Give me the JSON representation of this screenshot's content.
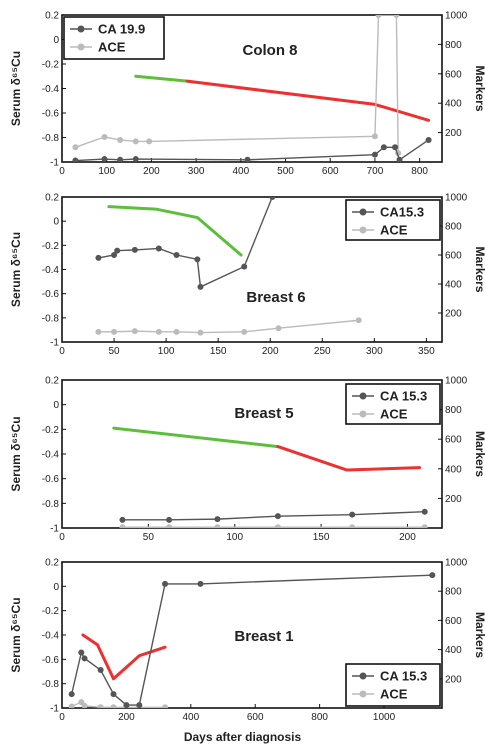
{
  "common": {
    "xlabel": "Days after diagnosis"
  },
  "chart_data": [
    {
      "type": "line",
      "title": "Colon 8",
      "ylabel": "Serum δ⁶⁵Cu",
      "y2label": "Markers",
      "xlim": [
        0,
        850
      ],
      "ylim": [
        -1,
        0.2
      ],
      "y2lim": [
        0,
        1000
      ],
      "xticks": [
        0,
        100,
        200,
        300,
        400,
        500,
        600,
        700,
        800
      ],
      "yticks": [
        -1,
        -0.8,
        -0.6,
        -0.4,
        -0.2,
        0,
        0.2
      ],
      "y2ticks": [
        200,
        400,
        600,
        800,
        1000
      ],
      "legend": {
        "placement": "top-left",
        "entries": [
          "CA 19.9",
          "ACE"
        ]
      },
      "copper_green": {
        "x": [
          165,
          280
        ],
        "y": [
          -0.3,
          -0.34
        ]
      },
      "copper_red": {
        "x": [
          280,
          700,
          820
        ],
        "y": [
          -0.34,
          -0.53,
          -0.66
        ]
      },
      "series": [
        {
          "name": "CA 19.9",
          "color": "#555555",
          "x": [
            30,
            95,
            130,
            165,
            415,
            700,
            720,
            745,
            755,
            820
          ],
          "y2": [
            10,
            20,
            15,
            20,
            15,
            50,
            100,
            100,
            15,
            150
          ]
        },
        {
          "name": "ACE",
          "color": "#bbbbbb",
          "x": [
            30,
            95,
            130,
            165,
            195,
            700,
            708,
            748,
            752
          ],
          "y2": [
            100,
            170,
            150,
            140,
            140,
            175,
            1000,
            1000,
            60
          ]
        }
      ]
    },
    {
      "type": "line",
      "title": "Breast 6",
      "ylabel": "Serum δ⁶⁵Cu",
      "y2label": "Markers",
      "xlim": [
        0,
        365
      ],
      "ylim": [
        -1,
        0.2
      ],
      "y2lim": [
        0,
        1000
      ],
      "xticks": [
        0,
        50,
        100,
        150,
        200,
        250,
        300,
        350
      ],
      "yticks": [
        -1,
        -0.8,
        -0.6,
        -0.4,
        -0.2,
        0,
        0.2
      ],
      "y2ticks": [
        200,
        400,
        600,
        800,
        1000
      ],
      "legend": {
        "placement": "top-right",
        "entries": [
          "CA15.3",
          "ACE"
        ]
      },
      "copper_green": {
        "x": [
          45,
          90,
          130,
          172
        ],
        "y": [
          0.12,
          0.1,
          0.03,
          -0.28
        ]
      },
      "copper_red": {
        "x": [],
        "y": []
      },
      "series": [
        {
          "name": "CA15.3",
          "color": "#555555",
          "x": [
            35,
            50,
            53,
            70,
            93,
            110,
            130,
            133,
            175,
            202
          ],
          "y2": [
            580,
            600,
            630,
            635,
            645,
            600,
            570,
            380,
            520,
            1000
          ]
        },
        {
          "name": "ACE",
          "color": "#bbbbbb",
          "x": [
            35,
            50,
            70,
            93,
            110,
            133,
            175,
            208,
            285
          ],
          "y2": [
            70,
            70,
            75,
            70,
            70,
            65,
            70,
            95,
            150
          ]
        }
      ]
    },
    {
      "type": "line",
      "title": "Breast 5",
      "ylabel": "Serum δ⁶⁵Cu",
      "y2label": "Markers",
      "xlim": [
        0,
        220
      ],
      "ylim": [
        -1,
        0.2
      ],
      "y2lim": [
        0,
        1000
      ],
      "xticks": [
        0,
        50,
        100,
        150,
        200
      ],
      "yticks": [
        -1,
        -0.8,
        -0.6,
        -0.4,
        -0.2,
        0,
        0.2
      ],
      "y2ticks": [
        200,
        400,
        600,
        800,
        1000
      ],
      "legend": {
        "placement": "top-right",
        "entries": [
          "CA 15.3",
          "ACE"
        ]
      },
      "copper_green": {
        "x": [
          30,
          125
        ],
        "y": [
          -0.19,
          -0.34
        ]
      },
      "copper_red": {
        "x": [
          125,
          165,
          207
        ],
        "y": [
          -0.34,
          -0.53,
          -0.51
        ]
      },
      "series": [
        {
          "name": "CA 15.3",
          "color": "#555555",
          "x": [
            35,
            62,
            90,
            125,
            168,
            210
          ],
          "y2": [
            55,
            55,
            60,
            80,
            90,
            110
          ]
        },
        {
          "name": "ACE",
          "color": "#bbbbbb",
          "x": [
            35,
            62,
            90,
            125,
            168,
            210
          ],
          "y2": [
            5,
            5,
            5,
            5,
            5,
            5
          ]
        }
      ]
    },
    {
      "type": "line",
      "title": "Breast 1",
      "ylabel": "Serum δ⁶⁵Cu",
      "y2label": "Markers",
      "xlim": [
        0,
        1180
      ],
      "ylim": [
        -1,
        0.2
      ],
      "y2lim": [
        0,
        1000
      ],
      "xticks": [
        0,
        200,
        400,
        600,
        800,
        1000
      ],
      "yticks": [
        -1,
        -0.8,
        -0.6,
        -0.4,
        -0.2,
        0,
        0.2
      ],
      "y2ticks": [
        200,
        400,
        600,
        800,
        1000
      ],
      "legend": {
        "placement": "bottom-right",
        "entries": [
          "CA 15.3",
          "ACE"
        ]
      },
      "copper_green": {
        "x": [],
        "y": []
      },
      "copper_red": {
        "x": [
          65,
          110,
          160,
          240,
          320
        ],
        "y": [
          -0.4,
          -0.48,
          -0.76,
          -0.57,
          -0.5
        ]
      },
      "series": [
        {
          "name": "CA 15.3",
          "color": "#555555",
          "x": [
            30,
            60,
            70,
            120,
            160,
            200,
            240,
            320,
            430,
            1150
          ],
          "y2": [
            95,
            380,
            340,
            260,
            95,
            20,
            20,
            850,
            850,
            910
          ]
        },
        {
          "name": "ACE",
          "color": "#bbbbbb",
          "x": [
            30,
            60,
            70,
            120,
            160,
            200,
            240,
            320
          ],
          "y2": [
            10,
            40,
            15,
            5,
            5,
            5,
            5,
            5
          ]
        }
      ]
    }
  ]
}
